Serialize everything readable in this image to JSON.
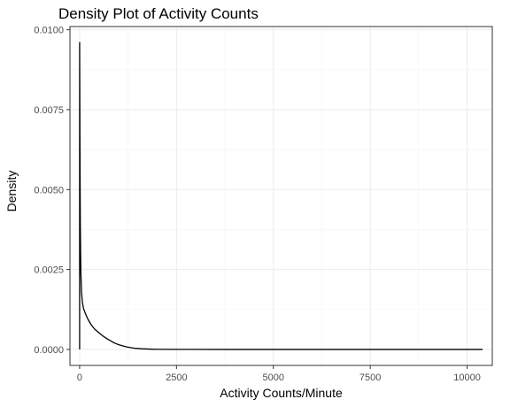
{
  "chart_data": {
    "type": "line",
    "title": "Density Plot of Activity Counts",
    "xlabel": "Activity Counts/Minute",
    "ylabel": "Density",
    "xlim": [
      -250,
      10650
    ],
    "ylim": [
      -0.0005,
      0.0101
    ],
    "x_ticks": [
      {
        "value": 0,
        "label": "0"
      },
      {
        "value": 2500,
        "label": "2500"
      },
      {
        "value": 5000,
        "label": "5000"
      },
      {
        "value": 7500,
        "label": "7500"
      },
      {
        "value": 10000,
        "label": "10000"
      }
    ],
    "y_ticks": [
      {
        "value": 0,
        "label": "0.0000"
      },
      {
        "value": 0.0025,
        "label": "0.0025"
      },
      {
        "value": 0.005,
        "label": "0.0050"
      },
      {
        "value": 0.0075,
        "label": "0.0075"
      },
      {
        "value": 0.01,
        "label": "0.0100"
      }
    ],
    "grid": true,
    "legend": "none",
    "series": [
      {
        "x": [
          0,
          0,
          3,
          7,
          12,
          18,
          25,
          35,
          50,
          70,
          100,
          150,
          200,
          250,
          300,
          350,
          400,
          500,
          600,
          700,
          800,
          900,
          1000,
          1200,
          1400,
          1600,
          1800,
          2000,
          2500,
          3000,
          4000,
          5000,
          6000,
          7000,
          8000,
          9000,
          10000,
          10400,
          10400
        ],
        "y": [
          0,
          0.0096,
          0.0085,
          0.0068,
          0.0052,
          0.0039,
          0.003,
          0.0023,
          0.00178,
          0.00148,
          0.00128,
          0.00112,
          0.00098,
          0.00087,
          0.00077,
          0.00069,
          0.00062,
          0.00052,
          0.00042,
          0.00034,
          0.00027,
          0.0002,
          0.00015,
          8e-05,
          4e-05,
          2e-05,
          1e-05,
          5e-06,
          2e-06,
          1e-06,
          5e-07,
          2e-07,
          1e-07,
          1e-07,
          0,
          0,
          0,
          0,
          0
        ]
      }
    ]
  }
}
